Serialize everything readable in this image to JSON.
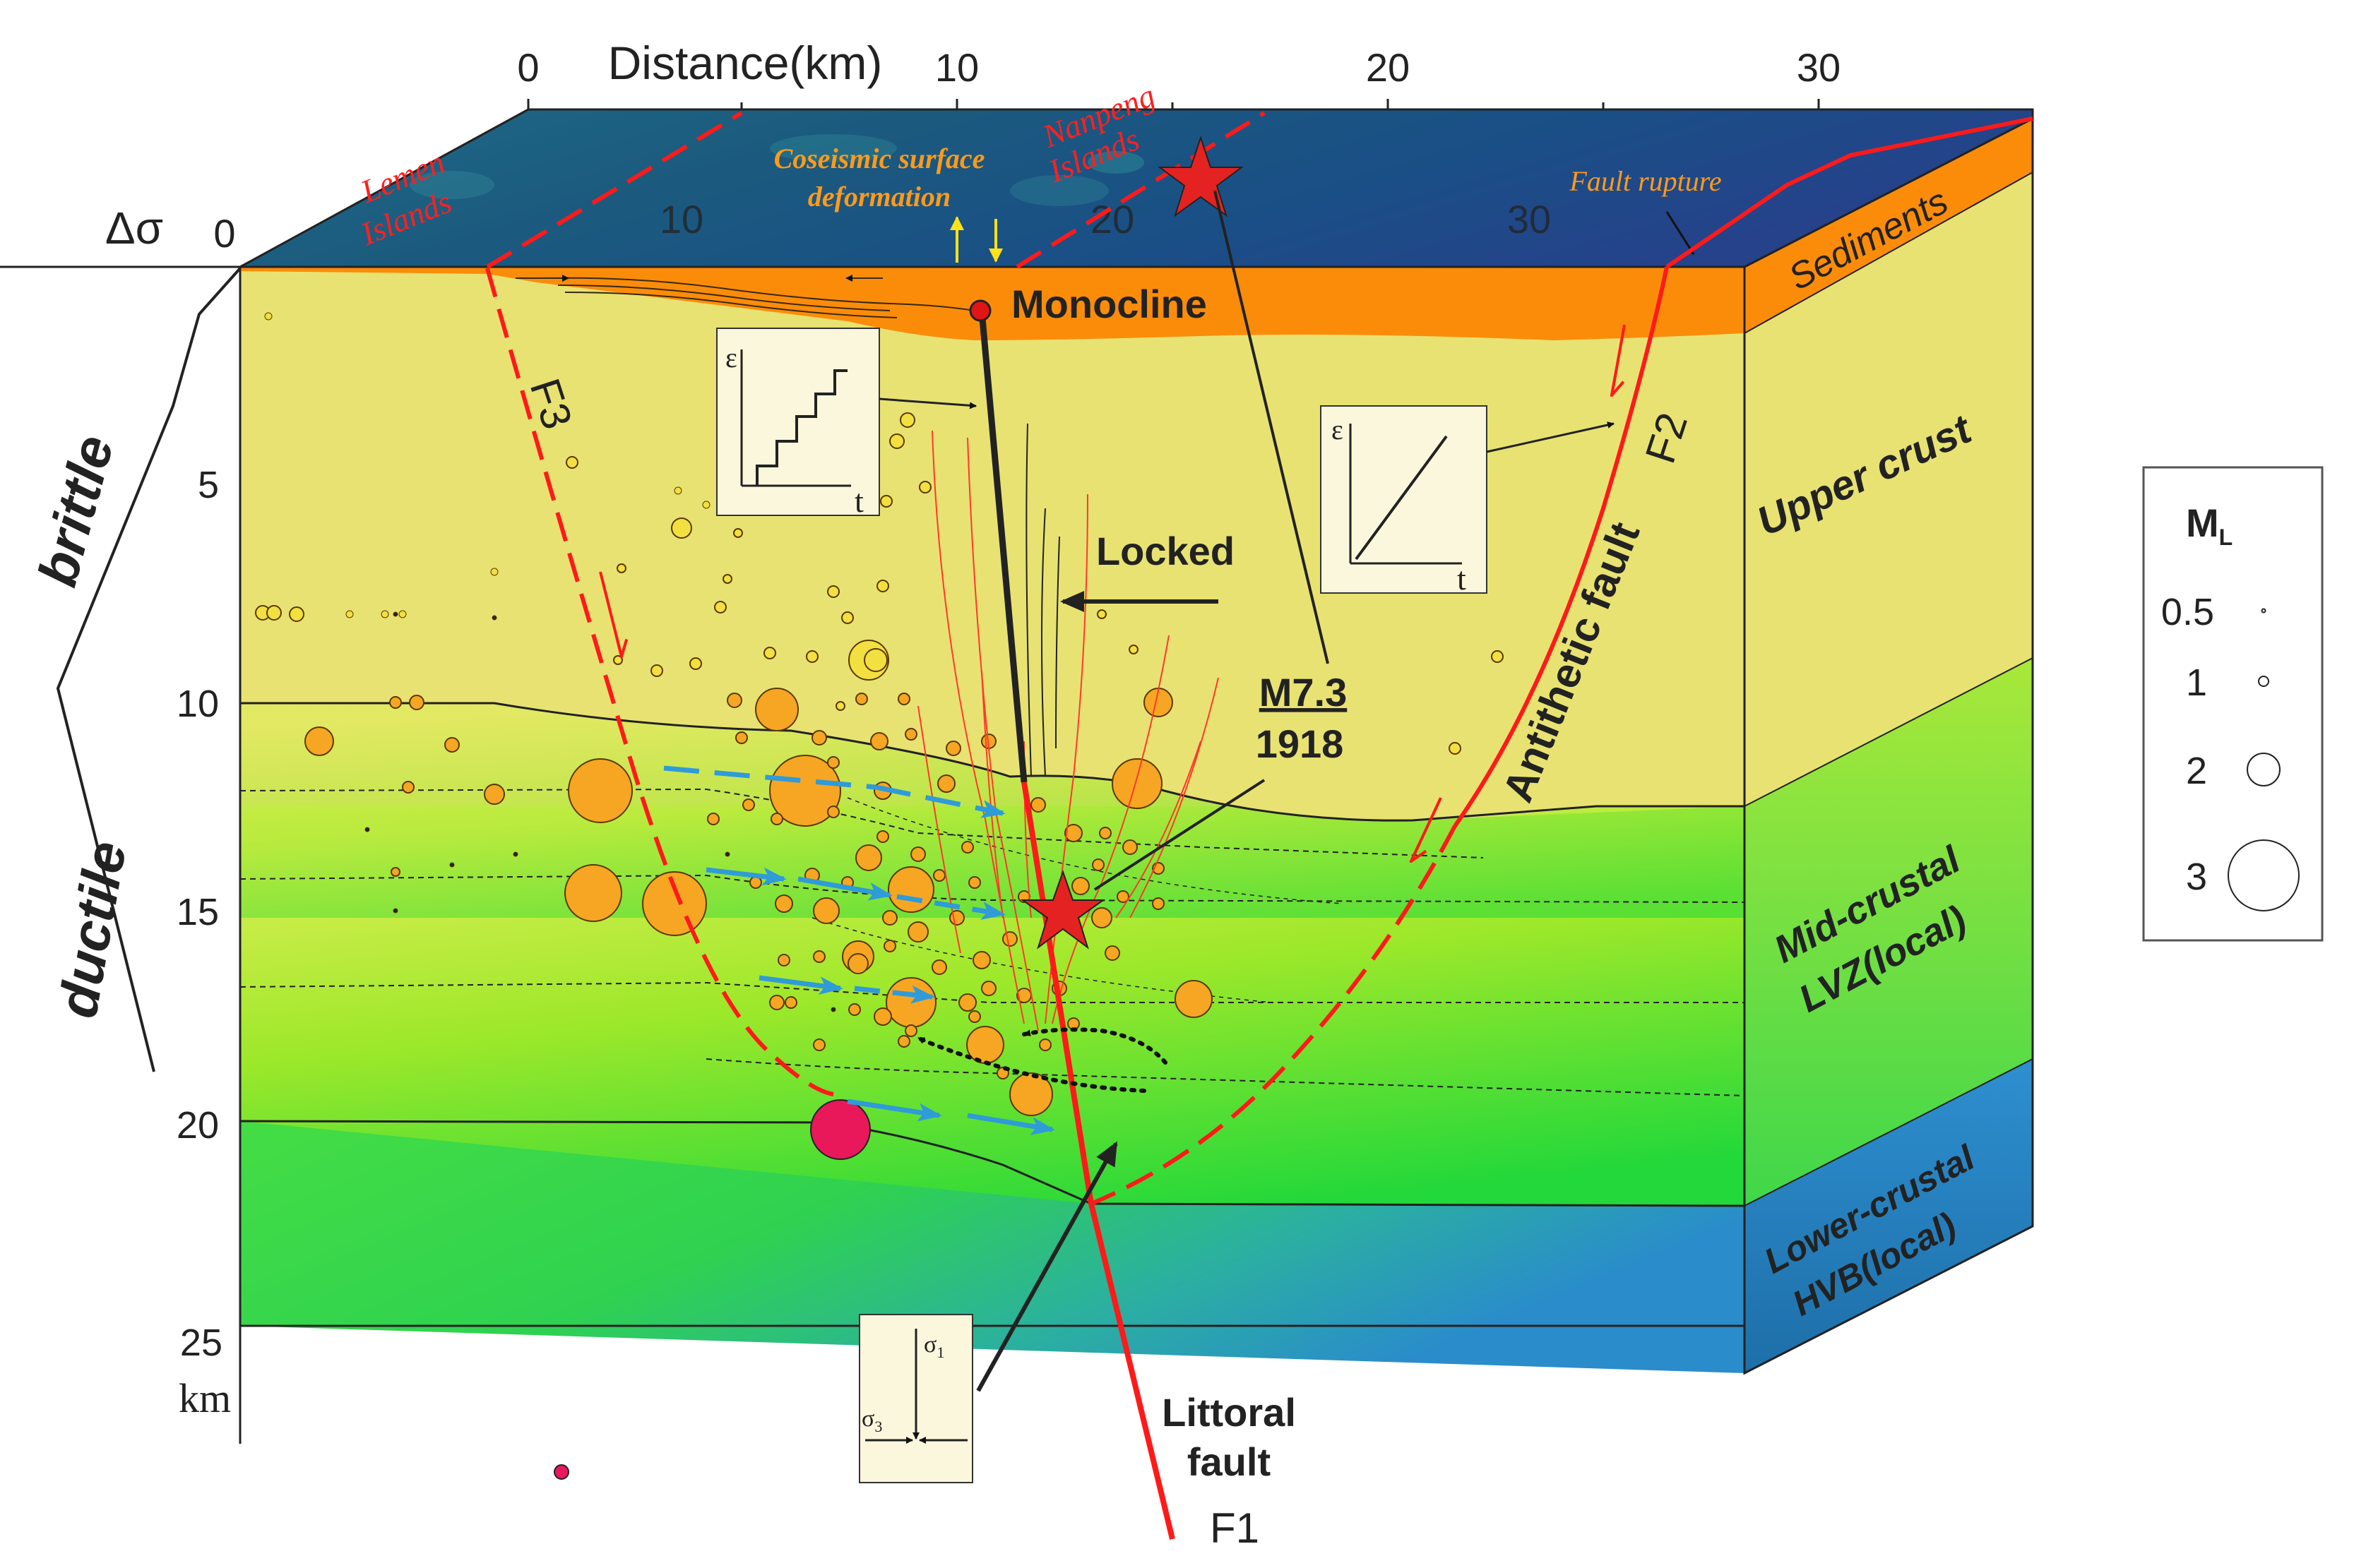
{
  "top_axis": {
    "title": "Distance(km)",
    "back_ticks": [
      "0",
      "10",
      "20",
      "30"
    ],
    "front_ticks": [
      "0",
      "10",
      "20",
      "30"
    ]
  },
  "depth_axis": {
    "delta_sigma": "Δσ",
    "ticks": [
      "5",
      "10",
      "15",
      "20",
      "25"
    ],
    "unit": "km"
  },
  "rheology": {
    "brittle": "brittle",
    "ductile": "ductile"
  },
  "surface_labels": {
    "lemen_1": "Lemen",
    "lemen_2": "Islands",
    "nanpeng_1": "Nanpeng",
    "nanpeng_2": "Islands",
    "coseismic_1": "Coseismic surface",
    "coseismic_2": "deformation",
    "fault_rupture": "Fault rupture"
  },
  "layers": {
    "sediments": "Sediments",
    "upper_crust": "Upper crust",
    "mid_1": "Mid-crustal",
    "mid_2": "LVZ(local)",
    "lower_1": "Lower-crustal",
    "lower_2": "HVB(local)"
  },
  "annotations": {
    "monocline": "Monocline",
    "locked": "Locked",
    "quake_mag": "M7.3",
    "quake_year": "1918",
    "antithetic": "Antithetic fault",
    "littoral_1": "Littoral",
    "littoral_2": "fault"
  },
  "faults": {
    "f1": "F1",
    "f2": "F2",
    "f3": "F3"
  },
  "insets": {
    "strain_y": "ε",
    "strain_x": "t",
    "sigma1": "σ",
    "sigma1_sub": "1",
    "sigma3": "σ",
    "sigma3_sub": "3"
  },
  "legend": {
    "title": "M",
    "title_sub": "L",
    "entries": [
      {
        "label": "0.5",
        "magnitude": 0.5
      },
      {
        "label": "1",
        "magnitude": 1
      },
      {
        "label": "2",
        "magnitude": 2
      },
      {
        "label": "3",
        "magnitude": 3
      }
    ]
  },
  "colors": {
    "fault_red": "#ff1a1a",
    "quake_orange": "#f6a623",
    "sediment_orange": "#fb8c0a",
    "upper_crust": "#e8e272",
    "flow_arrow": "#2f9bd8",
    "sea": "#1d4370"
  }
}
